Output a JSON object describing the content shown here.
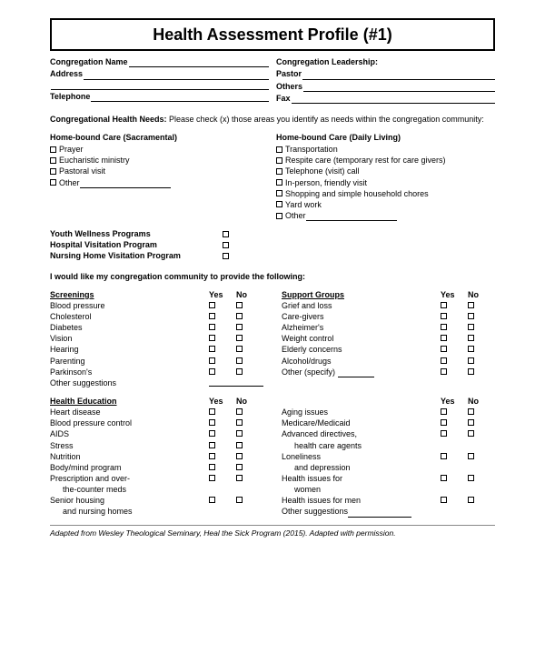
{
  "title": "Health Assessment Profile (#1)",
  "header": {
    "left": [
      {
        "label": "Congregation Name"
      },
      {
        "label": "Address"
      },
      {
        "label": ""
      },
      {
        "label": "Telephone"
      }
    ],
    "right_head": "Congregation Leadership:",
    "right": [
      {
        "label": "Pastor"
      },
      {
        "label": "Others"
      },
      {
        "label": "Fax"
      }
    ]
  },
  "needs_intro_bold": "Congregational Health Needs:",
  "needs_intro_rest": " Please check (x) those areas you identify as needs within the congregation community:",
  "needs_left_head": "Home-bound Care (Sacramental)",
  "needs_left": [
    "Prayer",
    "Eucharistic ministry",
    "Pastoral visit",
    "Other"
  ],
  "needs_right_head": "Home-bound Care (Daily Living)",
  "needs_right": [
    "Transportation",
    "Respite care (temporary rest for care givers)",
    "Telephone (visit) call",
    "In-person, friendly visit",
    "Shopping and simple household chores",
    "Yard work",
    "Other"
  ],
  "programs": [
    "Youth Wellness Programs",
    "Hospital Visitation Program",
    "Nursing Home Visitation Program"
  ],
  "provide_head": "I would like my congregation community to provide the following:",
  "screenings_head": "Screenings",
  "yes": "Yes",
  "no": "No",
  "screenings": [
    "Blood pressure",
    "Cholesterol",
    "Diabetes",
    "Vision",
    "Hearing",
    "Parenting",
    "Parkinson's"
  ],
  "screenings_other": "Other suggestions",
  "support_head": "Support Groups",
  "support": [
    "Grief and loss",
    "Care-givers",
    "Alzheimer's",
    "Weight control",
    "Elderly concerns",
    "Alcohol/drugs"
  ],
  "support_other": "Other (specify)",
  "edu_head": "Health Education",
  "edu_left": [
    {
      "t": "Heart disease",
      "yn": true
    },
    {
      "t": "Blood pressure control",
      "yn": true
    },
    {
      "t": "AIDS",
      "yn": true
    },
    {
      "t": "Stress",
      "yn": true
    },
    {
      "t": "",
      "yn": false
    },
    {
      "t": "Nutrition",
      "yn": true
    },
    {
      "t": "Body/mind program",
      "yn": true
    },
    {
      "t": "Prescription and over-",
      "yn": true
    },
    {
      "t": "the-counter meds",
      "yn": false,
      "indent": true
    },
    {
      "t": "Senior housing",
      "yn": true
    },
    {
      "t": "and nursing homes",
      "yn": false,
      "indent": true
    }
  ],
  "edu_right": [
    {
      "t": "Aging issues",
      "yn": true
    },
    {
      "t": "Medicare/Medicaid",
      "yn": true
    },
    {
      "t": "Advanced directives,",
      "yn": true
    },
    {
      "t": "health care agents",
      "yn": false,
      "indent": true
    },
    {
      "t": "Loneliness",
      "yn": true
    },
    {
      "t": "and depression",
      "yn": false,
      "indent": true
    },
    {
      "t": "Health issues for",
      "yn": true
    },
    {
      "t": "women",
      "yn": false,
      "indent": true
    },
    {
      "t": "Health issues for men",
      "yn": true
    },
    {
      "t": "",
      "yn": false
    },
    {
      "t": "Other suggestions",
      "yn": false,
      "blank": true
    }
  ],
  "footnote": "Adapted from Wesley Theological Seminary, Heal the Sick Program (2015).  Adapted with permission."
}
